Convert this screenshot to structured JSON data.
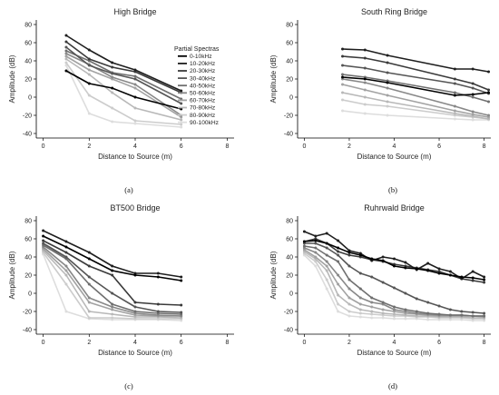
{
  "figure": {
    "colors": [
      "#000000",
      "#1e1e1e",
      "#3a3a3a",
      "#555555",
      "#6f6f6f",
      "#888888",
      "#a2a2a2",
      "#b8b8b8",
      "#cccccc",
      "#dddddd"
    ],
    "series_names": [
      "0-10kHz",
      "10-20kHz",
      "20-30kHz",
      "30-40kHz",
      "40-50kHz",
      "50-60kHz",
      "60-70kHz",
      "70-80kHz",
      "80-90kHz",
      "90-100kHz"
    ],
    "legend_title": "Partial Spectras",
    "legend_position": "top-right of panel (a)"
  },
  "chart_data": [
    {
      "type": "line",
      "panel": "a",
      "caption": "(a)",
      "title": "High Bridge",
      "xlabel": "Distance to Source (m)",
      "ylabel": "Amplitude (dB)",
      "xlim": [
        -0.3,
        8.3
      ],
      "ylim": [
        -45,
        85
      ],
      "xticks": [
        0,
        2,
        4,
        6,
        8
      ],
      "yticks": [
        -40,
        -20,
        0,
        20,
        40,
        60,
        80
      ],
      "grid": false,
      "x": [
        1,
        2,
        3,
        4,
        6
      ],
      "series": [
        {
          "name": "0-10kHz",
          "values": [
            29,
            15,
            10,
            0,
            -13
          ]
        },
        {
          "name": "10-20kHz",
          "values": [
            68,
            52,
            38,
            30,
            7
          ]
        },
        {
          "name": "20-30kHz",
          "values": [
            61,
            42,
            33,
            28,
            5
          ]
        },
        {
          "name": "30-40kHz",
          "values": [
            55,
            35,
            26,
            20,
            -7
          ]
        },
        {
          "name": "40-50kHz",
          "values": [
            51,
            40,
            27,
            23,
            -2
          ]
        },
        {
          "name": "50-60kHz",
          "values": [
            48,
            36,
            22,
            14,
            -20
          ]
        },
        {
          "name": "60-70kHz",
          "values": [
            45,
            30,
            20,
            10,
            -22
          ]
        },
        {
          "name": "70-80kHz",
          "values": [
            42,
            25,
            5,
            -12,
            -25
          ]
        },
        {
          "name": "80-90kHz",
          "values": [
            38,
            2,
            -12,
            -26,
            -30
          ]
        },
        {
          "name": "90-100kHz",
          "values": [
            35,
            -18,
            -27,
            -29,
            -33
          ]
        }
      ]
    },
    {
      "type": "line",
      "panel": "b",
      "caption": "(b)",
      "title": "South Ring Bridge",
      "xlabel": "Distance to Source (m)",
      "ylabel": "Amplitude (dB)",
      "xlim": [
        -0.3,
        8.3
      ],
      "ylim": [
        -45,
        85
      ],
      "xticks": [
        0,
        2,
        4,
        6,
        8
      ],
      "yticks": [
        -40,
        -20,
        0,
        20,
        40,
        60,
        80
      ],
      "grid": false,
      "x": [
        1.7,
        2.7,
        3.7,
        6.7,
        7.5,
        8.2
      ],
      "series": [
        {
          "name": "0-10kHz",
          "values": [
            22,
            20,
            16,
            2,
            3,
            5
          ]
        },
        {
          "name": "10-20kHz",
          "values": [
            53,
            52,
            46,
            31,
            31,
            28
          ]
        },
        {
          "name": "20-30kHz",
          "values": [
            45,
            43,
            38,
            20,
            15,
            8
          ]
        },
        {
          "name": "30-40kHz",
          "values": [
            35,
            32,
            27,
            15,
            10,
            4
          ]
        },
        {
          "name": "40-50kHz",
          "values": [
            25,
            22,
            18,
            5,
            0,
            -5
          ]
        },
        {
          "name": "50-60kHz",
          "values": [
            20,
            16,
            10,
            -10,
            -16,
            -20
          ]
        },
        {
          "name": "60-70kHz",
          "values": [
            14,
            8,
            2,
            -15,
            -19,
            -22
          ]
        },
        {
          "name": "70-80kHz",
          "values": [
            5,
            0,
            -5,
            -18,
            -21,
            -24
          ]
        },
        {
          "name": "80-90kHz",
          "values": [
            -3,
            -8,
            -10,
            -20,
            -22,
            -24
          ]
        },
        {
          "name": "90-100kHz",
          "values": [
            -15,
            -18,
            -20,
            -24,
            -25,
            -25
          ]
        }
      ]
    },
    {
      "type": "line",
      "panel": "c",
      "caption": "(c)",
      "title": "BT500 Bridge",
      "xlabel": "Distance to Source (m)",
      "ylabel": "Amplitude (dB)",
      "xlim": [
        -0.3,
        8.3
      ],
      "ylim": [
        -45,
        85
      ],
      "xticks": [
        0,
        2,
        4,
        6,
        8
      ],
      "yticks": [
        -40,
        -20,
        0,
        20,
        40,
        60,
        80
      ],
      "grid": false,
      "x": [
        0,
        1,
        2,
        3,
        4,
        5,
        6
      ],
      "series": [
        {
          "name": "0-10kHz",
          "values": [
            63,
            51,
            38,
            25,
            20,
            18,
            14
          ]
        },
        {
          "name": "10-20kHz",
          "values": [
            69,
            57,
            45,
            30,
            22,
            22,
            18
          ]
        },
        {
          "name": "20-30kHz",
          "values": [
            58,
            45,
            30,
            20,
            -10,
            -12,
            -13
          ]
        },
        {
          "name": "30-40kHz",
          "values": [
            55,
            40,
            18,
            0,
            -15,
            -20,
            -21
          ]
        },
        {
          "name": "40-50kHz",
          "values": [
            53,
            38,
            10,
            -12,
            -20,
            -22,
            -23
          ]
        },
        {
          "name": "50-60kHz",
          "values": [
            51,
            30,
            -5,
            -15,
            -22,
            -24,
            -25
          ]
        },
        {
          "name": "60-70kHz",
          "values": [
            49,
            25,
            -10,
            -18,
            -24,
            -25,
            -25
          ]
        },
        {
          "name": "70-80kHz",
          "values": [
            47,
            20,
            -20,
            -23,
            -26,
            -26,
            -27
          ]
        },
        {
          "name": "80-90kHz",
          "values": [
            45,
            10,
            -27,
            -27,
            -28,
            -28,
            -28
          ]
        },
        {
          "name": "90-100kHz",
          "values": [
            43,
            -20,
            -28,
            -29,
            -29,
            -29,
            -30
          ]
        }
      ]
    },
    {
      "type": "line",
      "panel": "d",
      "caption": "(d)",
      "title": "Ruhrwald Bridge",
      "xlabel": "Distance to Source (m)",
      "ylabel": "Amplitude (dB)",
      "xlim": [
        -0.3,
        8.3
      ],
      "ylim": [
        -45,
        85
      ],
      "xticks": [
        0,
        2,
        4,
        6,
        8
      ],
      "yticks": [
        -40,
        -20,
        0,
        20,
        40,
        60,
        80
      ],
      "grid": false,
      "x": [
        0,
        0.5,
        1,
        1.5,
        2,
        2.5,
        3,
        3.5,
        4,
        4.5,
        5,
        5.5,
        6,
        6.5,
        7,
        7.5,
        8
      ],
      "series": [
        {
          "name": "0-10kHz",
          "values": [
            57,
            58,
            55,
            50,
            45,
            42,
            38,
            36,
            30,
            28,
            27,
            25,
            22,
            20,
            18,
            17,
            15
          ]
        },
        {
          "name": "10-20kHz",
          "values": [
            68,
            63,
            66,
            58,
            47,
            44,
            36,
            40,
            38,
            34,
            26,
            33,
            27,
            24,
            16,
            24,
            18
          ]
        },
        {
          "name": "20-30kHz",
          "values": [
            57,
            60,
            55,
            46,
            42,
            40,
            37,
            35,
            32,
            30,
            28,
            26,
            24,
            20,
            16,
            14,
            12
          ]
        },
        {
          "name": "30-40kHz",
          "values": [
            55,
            55,
            50,
            42,
            30,
            22,
            18,
            12,
            6,
            0,
            -6,
            -10,
            -14,
            -18,
            -20,
            -21,
            -22
          ]
        },
        {
          "name": "40-50kHz",
          "values": [
            52,
            50,
            42,
            35,
            15,
            5,
            -5,
            -10,
            -15,
            -18,
            -20,
            -22,
            -23,
            -24,
            -24,
            -25,
            -25
          ]
        },
        {
          "name": "50-60kHz",
          "values": [
            50,
            45,
            35,
            20,
            5,
            -5,
            -10,
            -12,
            -18,
            -20,
            -22,
            -23,
            -24,
            -24,
            -24,
            -25,
            -25
          ]
        },
        {
          "name": "60-70kHz",
          "values": [
            48,
            40,
            30,
            10,
            -5,
            -12,
            -15,
            -18,
            -20,
            -22,
            -23,
            -24,
            -25,
            -25,
            -25,
            -25,
            -26
          ]
        },
        {
          "name": "70-80kHz",
          "values": [
            46,
            38,
            25,
            -2,
            -12,
            -18,
            -20,
            -22,
            -23,
            -24,
            -25,
            -25,
            -26,
            -26,
            -26,
            -27,
            -27
          ]
        },
        {
          "name": "80-90kHz",
          "values": [
            44,
            35,
            15,
            -12,
            -20,
            -22,
            -23,
            -24,
            -25,
            -25,
            -26,
            -26,
            -27,
            -27,
            -27,
            -28,
            -28
          ]
        },
        {
          "name": "90-100kHz",
          "values": [
            42,
            30,
            5,
            -20,
            -25,
            -26,
            -27,
            -27,
            -28,
            -28,
            -28,
            -29,
            -29,
            -29,
            -29,
            -30,
            -30
          ]
        }
      ]
    }
  ]
}
